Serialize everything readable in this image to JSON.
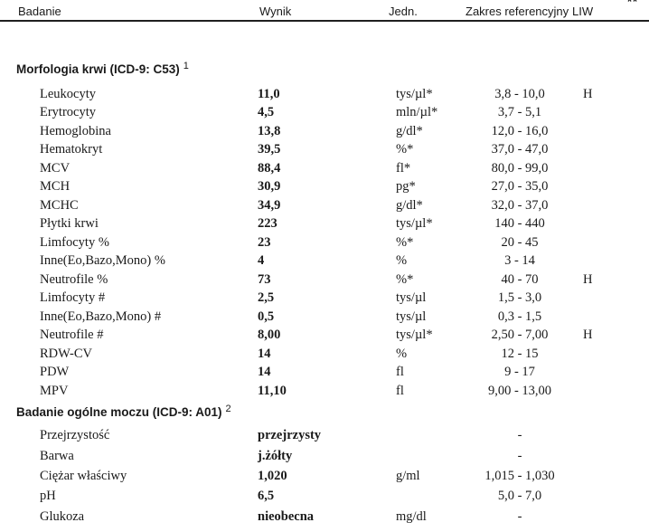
{
  "page": {
    "background": "#ffffff",
    "text_color": "#1a1a1a"
  },
  "header": {
    "columns": {
      "badanie": "Badanie",
      "wynik": "Wynik",
      "jedn": "Jedn.",
      "zakres": "Zakres referencyjny",
      "liw": "LIW",
      "liw_footnote": "**"
    }
  },
  "sections": [
    {
      "title": "Morfologia krwi (ICD-9: C53)",
      "superscript": "1",
      "rows": [
        {
          "name": "Leukocyty",
          "result": "11,0",
          "unit": "tys/µl*",
          "range": "3,8 - 10,0",
          "flag": "H"
        },
        {
          "name": "Erytrocyty",
          "result": "4,5",
          "unit": "mln/µl*",
          "range": "3,7 - 5,1",
          "flag": ""
        },
        {
          "name": "Hemoglobina",
          "result": "13,8",
          "unit": "g/dl*",
          "range": "12,0 - 16,0",
          "flag": ""
        },
        {
          "name": "Hematokryt",
          "result": "39,5",
          "unit": "%*",
          "range": "37,0 - 47,0",
          "flag": ""
        },
        {
          "name": "MCV",
          "result": "88,4",
          "unit": "fl*",
          "range": "80,0 - 99,0",
          "flag": ""
        },
        {
          "name": "MCH",
          "result": "30,9",
          "unit": "pg*",
          "range": "27,0 - 35,0",
          "flag": ""
        },
        {
          "name": "MCHC",
          "result": "34,9",
          "unit": "g/dl*",
          "range": "32,0 - 37,0",
          "flag": ""
        },
        {
          "name": "Płytki krwi",
          "result": "223",
          "unit": "tys/µl*",
          "range": "140 - 440",
          "flag": ""
        },
        {
          "name": "Limfocyty %",
          "result": "23",
          "unit": "%*",
          "range": "20 - 45",
          "flag": ""
        },
        {
          "name": "Inne(Eo,Bazo,Mono) %",
          "result": "4",
          "unit": "%",
          "range": "3 - 14",
          "flag": ""
        },
        {
          "name": "Neutrofile %",
          "result": "73",
          "unit": "%*",
          "range": "40 - 70",
          "flag": "H"
        },
        {
          "name": "Limfocyty #",
          "result": "2,5",
          "unit": "tys/µl",
          "range": "1,5 - 3,0",
          "flag": ""
        },
        {
          "name": "Inne(Eo,Bazo,Mono) #",
          "result": "0,5",
          "unit": "tys/µl",
          "range": "0,3 - 1,5",
          "flag": ""
        },
        {
          "name": "Neutrofile #",
          "result": "8,00",
          "unit": "tys/µl*",
          "range": "2,50 - 7,00",
          "flag": "H"
        },
        {
          "name": "RDW-CV",
          "result": "14",
          "unit": "%",
          "range": "12 - 15",
          "flag": ""
        },
        {
          "name": "PDW",
          "result": "14",
          "unit": "fl",
          "range": "9 - 17",
          "flag": ""
        },
        {
          "name": "MPV",
          "result": "11,10",
          "unit": "fl",
          "range": "9,00 - 13,00",
          "flag": ""
        }
      ]
    },
    {
      "title": "Badanie ogólne moczu (ICD-9: A01)",
      "superscript": "2",
      "rows": [
        {
          "name": "Przejrzystość",
          "result": "przejrzysty",
          "unit": "",
          "range": "-",
          "flag": ""
        },
        {
          "name": "Barwa",
          "result": "j.żółty",
          "unit": "",
          "range": "-",
          "flag": ""
        },
        {
          "name": "Ciężar właściwy",
          "result": "1,020",
          "unit": "g/ml",
          "range": "1,015 - 1,030",
          "flag": ""
        },
        {
          "name": "pH",
          "result": "6,5",
          "unit": "",
          "range": "5,0 - 7,0",
          "flag": ""
        },
        {
          "name": "Glukoza",
          "result": "nieobecna",
          "unit": "mg/dl",
          "range": "-",
          "flag": ""
        }
      ]
    }
  ]
}
